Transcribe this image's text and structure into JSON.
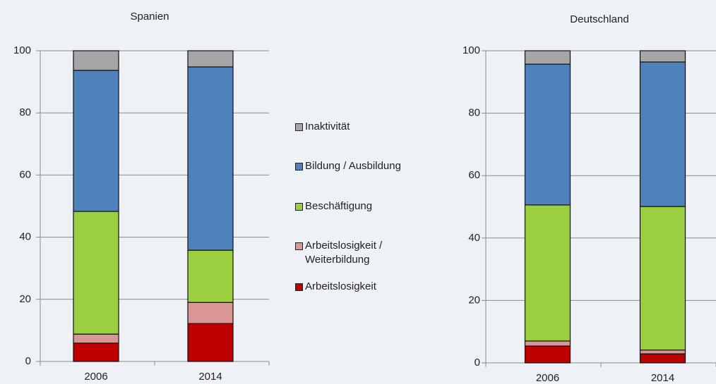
{
  "chart_data": [
    {
      "type": "stacked-bar",
      "title": "Spanien",
      "categories": [
        "2006",
        "2014"
      ],
      "ylim": [
        0,
        100
      ],
      "yticks": [
        0,
        20,
        40,
        60,
        80,
        100
      ],
      "grid": true,
      "series": [
        {
          "name": "Arbeitslosigkeit",
          "color": "#c00000",
          "values": [
            5.9,
            12.2
          ]
        },
        {
          "name": "Arbeitslosigkeit / Weiterbildung",
          "color": "#d99694",
          "values": [
            2.9,
            6.8
          ]
        },
        {
          "name": "Beschäftigung",
          "color": "#9bcf3f",
          "values": [
            39.5,
            16.8
          ]
        },
        {
          "name": "Bildung / Ausbildung",
          "color": "#4f81bd",
          "values": [
            45.4,
            59.0
          ]
        },
        {
          "name": "Inaktivität",
          "color": "#a6a6a6",
          "values": [
            6.3,
            5.2
          ]
        }
      ]
    },
    {
      "type": "stacked-bar",
      "title": "Deutschland",
      "categories": [
        "2006",
        "2014"
      ],
      "ylim": [
        0,
        100
      ],
      "yticks": [
        0,
        20,
        40,
        60,
        80,
        100
      ],
      "grid": true,
      "series": [
        {
          "name": "Arbeitslosigkeit",
          "color": "#c00000",
          "values": [
            5.4,
            2.9
          ]
        },
        {
          "name": "Arbeitslosigkeit / Weiterbildung",
          "color": "#d99694",
          "values": [
            1.6,
            1.2
          ]
        },
        {
          "name": "Beschäftigung",
          "color": "#9bcf3f",
          "values": [
            43.6,
            46.0
          ]
        },
        {
          "name": "Bildung / Ausbildung",
          "color": "#4f81bd",
          "values": [
            45.1,
            46.3
          ]
        },
        {
          "name": "Inaktivität",
          "color": "#a6a6a6",
          "values": [
            4.3,
            3.6
          ]
        }
      ]
    }
  ]
}
